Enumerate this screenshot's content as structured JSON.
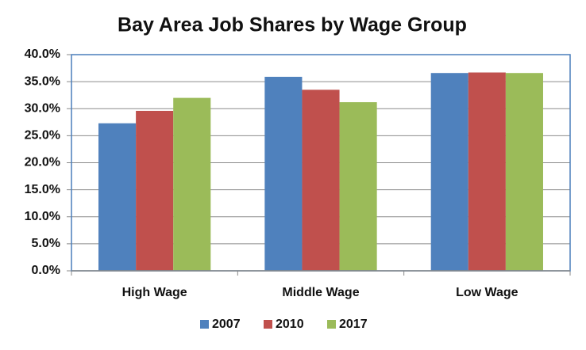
{
  "chart_data": {
    "type": "bar",
    "title": "Bay Area Job Shares by Wage Group",
    "categories": [
      "High Wage",
      "Middle Wage",
      "Low Wage"
    ],
    "series": [
      {
        "name": "2007",
        "color": "#4f81bd",
        "values": [
          27.3,
          35.9,
          36.6
        ]
      },
      {
        "name": "2010",
        "color": "#c0504d",
        "values": [
          29.6,
          33.5,
          36.7
        ]
      },
      {
        "name": "2017",
        "color": "#9bbb59",
        "values": [
          32.0,
          31.2,
          36.6
        ]
      }
    ],
    "ylim": [
      0,
      40
    ],
    "yticks": [
      {
        "value": 0,
        "label": "0.0%"
      },
      {
        "value": 5,
        "label": "5.0%"
      },
      {
        "value": 10,
        "label": "10.0%"
      },
      {
        "value": 15,
        "label": "15.0%"
      },
      {
        "value": 20,
        "label": "20.0%"
      },
      {
        "value": 25,
        "label": "25.0%"
      },
      {
        "value": 30,
        "label": "30.0%"
      },
      {
        "value": 35,
        "label": "35.0%"
      },
      {
        "value": 40,
        "label": "40.0%"
      }
    ],
    "grid": true,
    "legend": "bottom"
  }
}
